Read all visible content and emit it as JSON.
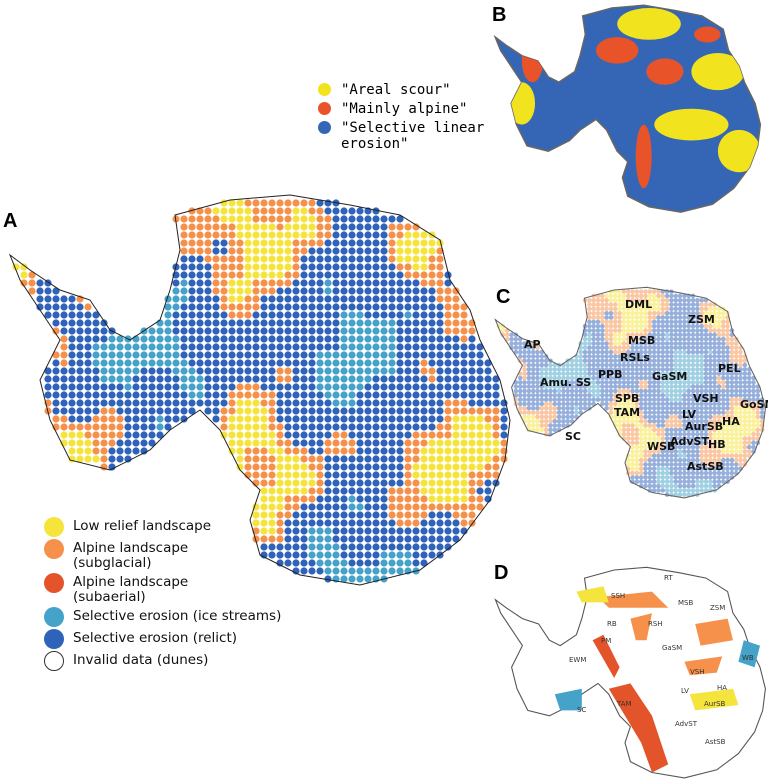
{
  "panels": {
    "a": "A",
    "b": "B",
    "c": "C",
    "d": "D"
  },
  "legend_a": [
    {
      "label": "Low relief landscape",
      "color": "#f4e43c"
    },
    {
      "label": "Alpine landscape (subglacial)",
      "color": "#f6914b"
    },
    {
      "label": "Alpine landscape (subaerial)",
      "color": "#e4542a"
    },
    {
      "label": "Selective erosion (ice streams)",
      "color": "#45a2c9"
    },
    {
      "label": "Selective erosion (relict)",
      "color": "#2f62b9"
    },
    {
      "label": "Invalid data (dunes)",
      "color": "#ffffff"
    }
  ],
  "legend_b": [
    {
      "label": "\"Areal scour\"",
      "color": "#f2e31f"
    },
    {
      "label": "\"Mainly alpine\"",
      "color": "#e8532a"
    },
    {
      "label": "\"Selective linear erosion\"",
      "color": "#3566b6"
    }
  ],
  "labels_c": [
    "DML",
    "ZSM",
    "MSB",
    "AP",
    "RSLs",
    "PEL",
    "PPB",
    "GaSM",
    "Amu. SS",
    "SPB",
    "VSH",
    "GoSM",
    "LV",
    "AurSB",
    "HA",
    "SC",
    "TAM",
    "HB",
    "AdvST",
    "WSB",
    "AstSB"
  ],
  "labels_d": [
    "RT",
    "SSH",
    "MSB",
    "ZSM",
    "RB",
    "RSH",
    "PM",
    "GaSM",
    "EWM",
    "WB",
    "VSH",
    "LV",
    "HA",
    "TAM",
    "SC",
    "AurSB",
    "AdvST",
    "AstSB"
  ]
}
